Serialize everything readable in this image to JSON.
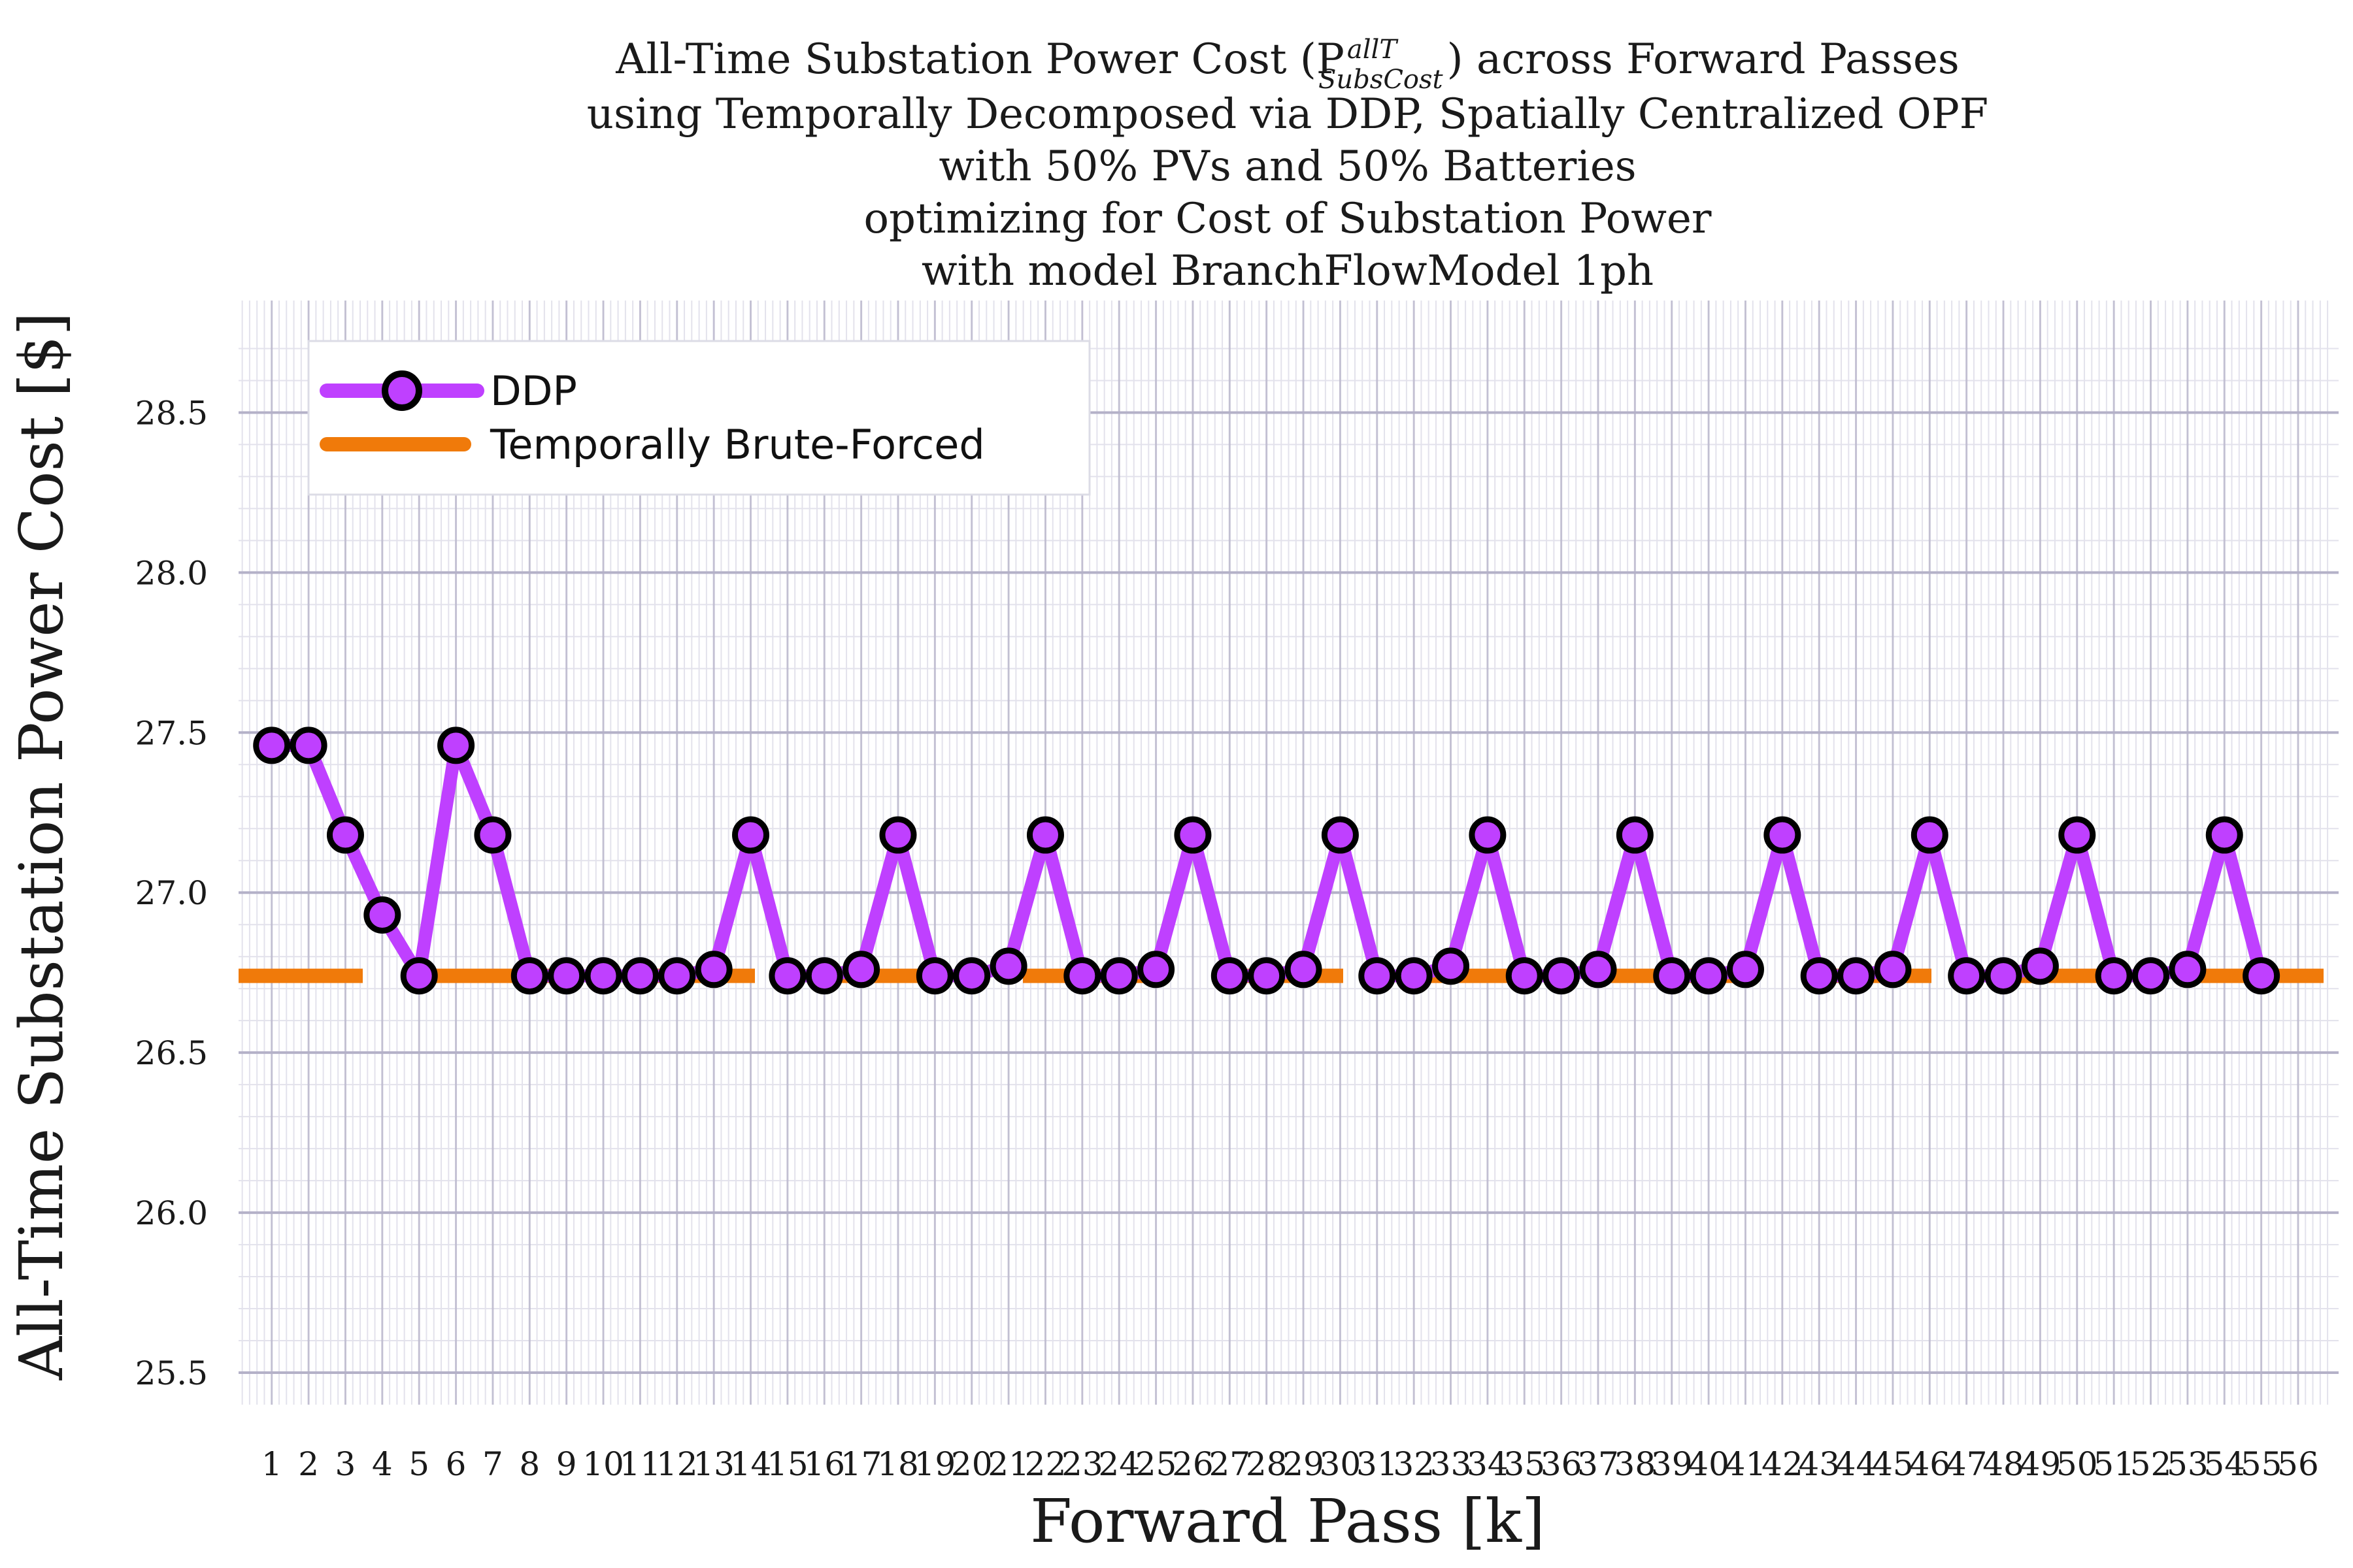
{
  "chart_data": {
    "type": "line",
    "title_lines": [
      "All-Time Substation Power Cost (P",
      "using Temporally Decomposed via DDP, Spatially Centralized OPF",
      "with 50% PVs and 50% Batteries",
      "optimizing for Cost of Substation Power",
      "with model BranchFlowModel 1ph"
    ],
    "title_symbol": {
      "base": "P",
      "superscript": "allT",
      "subscript": "SubsCost",
      "suffix": ") across Forward Passes"
    },
    "xlabel": "Forward Pass [k]",
    "ylabel": "All-Time Substation Power Cost [$]",
    "ylim": [
      25.4,
      28.85
    ],
    "xlim": [
      0.1,
      57.1
    ],
    "yticks": [
      "25.5",
      "26.0",
      "26.5",
      "27.0",
      "27.5",
      "28.0",
      "28.5"
    ],
    "x": [
      1,
      2,
      3,
      4,
      5,
      6,
      7,
      8,
      9,
      10,
      11,
      12,
      13,
      14,
      15,
      16,
      17,
      18,
      19,
      20,
      21,
      22,
      23,
      24,
      25,
      26,
      27,
      28,
      29,
      30,
      31,
      32,
      33,
      34,
      35,
      36,
      37,
      38,
      39,
      40,
      41,
      42,
      43,
      44,
      45,
      46,
      47,
      48,
      49,
      50,
      51,
      52,
      53,
      54,
      55,
      56
    ],
    "grid": true,
    "legend_position": "top-left",
    "series": [
      {
        "name": "DDP",
        "color": "#bf40ff",
        "marker": "circle",
        "x": [
          1,
          2,
          3,
          4,
          5,
          6,
          7,
          8,
          9,
          10,
          11,
          12,
          13,
          14,
          15,
          16,
          17,
          18,
          19,
          20,
          21,
          22,
          23,
          24,
          25,
          26,
          27,
          28,
          29,
          30,
          31,
          32,
          33,
          34,
          35,
          36,
          37,
          38,
          39,
          40,
          41,
          42,
          43,
          44,
          45,
          46,
          47,
          48,
          49,
          50,
          51,
          52,
          53,
          54,
          55
        ],
        "values": [
          27.46,
          27.46,
          27.18,
          26.93,
          26.74,
          27.46,
          27.18,
          26.74,
          26.74,
          26.74,
          26.74,
          26.74,
          26.76,
          27.18,
          26.74,
          26.74,
          26.76,
          27.18,
          26.74,
          26.74,
          26.77,
          27.18,
          26.74,
          26.74,
          26.76,
          27.18,
          26.74,
          26.74,
          26.76,
          27.18,
          26.74,
          26.74,
          26.77,
          27.18,
          26.74,
          26.74,
          26.76,
          27.18,
          26.74,
          26.74,
          26.76,
          27.18,
          26.74,
          26.74,
          26.76,
          27.18,
          26.74,
          26.74,
          26.77,
          27.18,
          26.74,
          26.74,
          26.76,
          27.18,
          26.74
        ]
      },
      {
        "name": "Temporally Brute-Forced",
        "color": "#f07a0a",
        "style": "dashed",
        "value": 26.74
      }
    ]
  },
  "colors": {
    "grid_major": "#b4b1c8",
    "grid_minor": "#e3e2ec",
    "marker_edge": "#000000"
  }
}
